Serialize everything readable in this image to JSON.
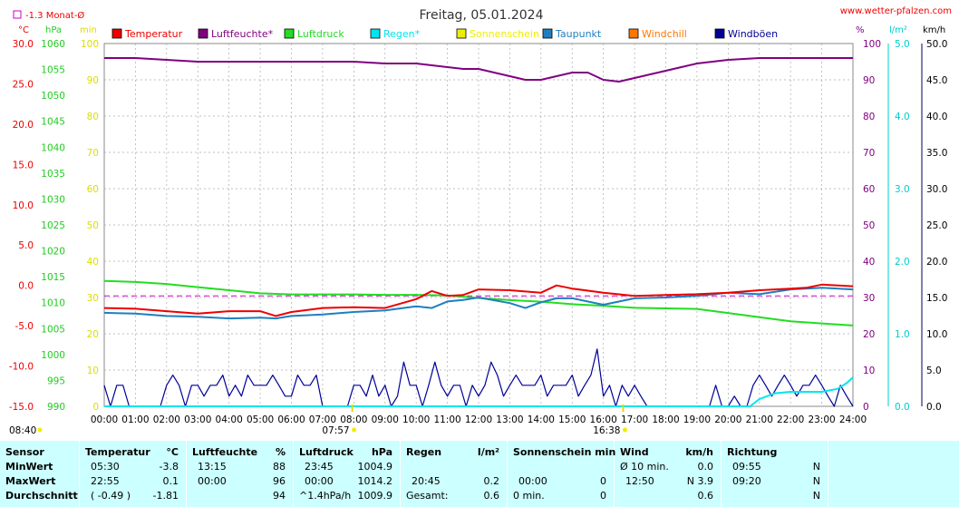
{
  "header": {
    "title": "Freitag, 05.01.2024",
    "site": "www.wetter-pfalzen.com",
    "month_avg_label": "-1.3 Monat-Ø"
  },
  "axis_units": {
    "temp": "°C",
    "pressure": "hPa",
    "minutes": "min",
    "humidity": "%",
    "rain": "l/m²",
    "wind": "km/h"
  },
  "legend": [
    {
      "label": "Temperatur",
      "color": "#ee0000"
    },
    {
      "label": "Luftfeuchte*",
      "color": "#800080"
    },
    {
      "label": "Luftdruck",
      "color": "#22dd22"
    },
    {
      "label": "Regen*",
      "color": "#00e5ee"
    },
    {
      "label": "Sonnenschein",
      "color": "#eeee00"
    },
    {
      "label": "Taupunkt",
      "color": "#1e7fc0"
    },
    {
      "label": "Windchill",
      "color": "#ff7700"
    },
    {
      "label": "Windböen",
      "color": "#000099"
    }
  ],
  "markers": {
    "sunrise_left": "08:40",
    "sunrise": "07:57",
    "sunset": "16:38"
  },
  "chart_data": {
    "type": "line",
    "title": "Freitag, 05.01.2024",
    "x_ticks": [
      "00:00",
      "01:00",
      "02:00",
      "03:00",
      "04:00",
      "05:00",
      "06:00",
      "07:00",
      "08:00",
      "09:00",
      "10:00",
      "11:00",
      "12:00",
      "13:00",
      "14:00",
      "15:00",
      "16:00",
      "17:00",
      "18:00",
      "19:00",
      "20:00",
      "21:00",
      "22:00",
      "23:00",
      "24:00"
    ],
    "axes": {
      "temp": {
        "unit": "°C",
        "range": [
          -15,
          30
        ],
        "ticks": [
          "30.0",
          "25.0",
          "20.0",
          "15.0",
          "10.0",
          "5.0",
          "0.0",
          "-5.0",
          "-10.0",
          "-15.0"
        ]
      },
      "pressure": {
        "unit": "hPa",
        "range": [
          990,
          1060
        ],
        "ticks": [
          "1060",
          "1055",
          "1050",
          "1045",
          "1040",
          "1035",
          "1030",
          "1025",
          "1020",
          "1015",
          "1010",
          "1005",
          "1000",
          "995",
          "990"
        ]
      },
      "minutes": {
        "unit": "min",
        "range": [
          0,
          100
        ],
        "ticks": [
          "100",
          "90",
          "80",
          "70",
          "60",
          "50",
          "40",
          "30",
          "20",
          "10",
          "0"
        ]
      },
      "humidity": {
        "unit": "%",
        "range": [
          0,
          100
        ],
        "ticks": [
          "100",
          "90",
          "80",
          "70",
          "60",
          "50",
          "40",
          "30",
          "20",
          "10",
          "0"
        ]
      },
      "rain": {
        "unit": "l/m²",
        "range": [
          0,
          5
        ],
        "ticks": [
          "5.0",
          "4.0",
          "3.0",
          "2.0",
          "1.0",
          "0.0"
        ]
      },
      "wind": {
        "unit": "km/h",
        "range": [
          0,
          50
        ],
        "ticks": [
          "50.0",
          "45.0",
          "40.0",
          "35.0",
          "30.0",
          "25.0",
          "20.0",
          "15.0",
          "10.0",
          "5.0",
          "0.0"
        ]
      }
    },
    "month_avg_temp": -1.3,
    "series": [
      {
        "name": "Luftfeuchte*",
        "axis": "humidity",
        "color": "#800080",
        "x": [
          0,
          1,
          2,
          3,
          4,
          5,
          6,
          7,
          8,
          9,
          10,
          11,
          11.5,
          12,
          12.5,
          13,
          13.5,
          14,
          14.5,
          15,
          15.5,
          16,
          16.5,
          17,
          17.5,
          18,
          18.5,
          19,
          20,
          21,
          22,
          23,
          24
        ],
        "y": [
          96,
          96,
          95.5,
          95,
          95,
          95,
          95,
          95,
          95,
          94.5,
          94.5,
          93.5,
          93,
          93,
          92,
          91,
          90,
          90,
          91,
          92,
          92,
          90,
          89.5,
          90.5,
          91.5,
          92.5,
          93.5,
          94.5,
          95.5,
          96,
          96,
          96,
          96
        ]
      },
      {
        "name": "Temperatur",
        "axis": "temp",
        "color": "#ee0000",
        "x": [
          0,
          1,
          2,
          3,
          4,
          5,
          5.5,
          6,
          7,
          8,
          9,
          10,
          10.5,
          11,
          11.5,
          12,
          13,
          14,
          14.5,
          15,
          16,
          17,
          18,
          19,
          20,
          21,
          22,
          22.5,
          23,
          24
        ],
        "y": [
          -2.8,
          -2.9,
          -3.2,
          -3.5,
          -3.2,
          -3.2,
          -3.8,
          -3.3,
          -2.8,
          -2.7,
          -2.8,
          -1.7,
          -0.7,
          -1.3,
          -1.2,
          -0.5,
          -0.6,
          -0.9,
          0.0,
          -0.4,
          -0.9,
          -1.3,
          -1.2,
          -1.1,
          -0.9,
          -0.6,
          -0.4,
          -0.3,
          0.1,
          -0.1
        ]
      },
      {
        "name": "Taupunkt",
        "axis": "temp",
        "color": "#1e7fc0",
        "x": [
          0,
          1,
          2,
          3,
          4,
          5,
          5.5,
          6,
          7,
          8,
          9,
          10,
          10.5,
          11,
          11.5,
          12,
          13,
          13.5,
          14,
          14.5,
          15,
          16,
          17,
          18,
          19,
          20,
          21,
          22,
          23,
          24
        ],
        "y": [
          -3.4,
          -3.5,
          -3.8,
          -3.9,
          -4.1,
          -4.0,
          -4.1,
          -3.8,
          -3.6,
          -3.3,
          -3.1,
          -2.6,
          -2.8,
          -2.0,
          -1.8,
          -1.5,
          -2.2,
          -2.8,
          -2.1,
          -1.6,
          -1.6,
          -2.4,
          -1.6,
          -1.5,
          -1.3,
          -0.9,
          -1.1,
          -0.5,
          -0.3,
          -0.5
        ]
      },
      {
        "name": "Luftdruck",
        "axis": "pressure",
        "color": "#22dd22",
        "x": [
          0,
          1,
          2,
          3,
          4,
          5,
          6,
          7,
          8,
          9,
          10,
          11,
          12,
          13,
          14,
          15,
          16,
          17,
          18,
          19,
          20,
          21,
          22,
          23,
          24
        ],
        "y": [
          1014.2,
          1014.0,
          1013.6,
          1013.0,
          1012.4,
          1011.8,
          1011.6,
          1011.6,
          1011.6,
          1011.5,
          1011.5,
          1011.4,
          1010.9,
          1010.5,
          1010.2,
          1009.7,
          1009.4,
          1009.0,
          1008.9,
          1008.8,
          1008.0,
          1007.2,
          1006.4,
          1006.0,
          1005.6
        ]
      },
      {
        "name": "Windböen",
        "axis": "wind",
        "color": "#000099",
        "x": [
          0,
          0.2,
          0.4,
          0.6,
          0.8,
          1.0,
          1.2,
          1.4,
          1.6,
          1.8,
          2.0,
          2.2,
          2.4,
          2.6,
          2.8,
          3.0,
          3.2,
          3.4,
          3.6,
          3.8,
          4.0,
          4.2,
          4.4,
          4.6,
          4.8,
          5.0,
          5.2,
          5.4,
          5.6,
          5.8,
          6.0,
          6.2,
          6.4,
          6.6,
          6.8,
          7.0,
          7.2,
          7.4,
          7.6,
          7.8,
          8.0,
          8.2,
          8.4,
          8.6,
          8.8,
          9.0,
          9.2,
          9.4,
          9.6,
          9.8,
          10.0,
          10.2,
          10.4,
          10.6,
          10.8,
          11.0,
          11.2,
          11.4,
          11.6,
          11.8,
          12.0,
          12.2,
          12.4,
          12.6,
          12.8,
          13.0,
          13.2,
          13.4,
          13.6,
          13.8,
          14.0,
          14.2,
          14.4,
          14.6,
          14.8,
          15.0,
          15.2,
          15.4,
          15.6,
          15.8,
          16.0,
          16.2,
          16.4,
          16.6,
          16.8,
          17.0,
          17.2,
          17.4,
          17.6,
          17.8,
          18.0,
          18.2,
          18.4,
          18.6,
          18.8,
          19.0,
          19.2,
          19.4,
          19.6,
          19.8,
          20.0,
          20.2,
          20.4,
          20.6,
          20.8,
          21.0,
          21.2,
          21.4,
          21.6,
          21.8,
          22.0,
          22.2,
          22.4,
          22.6,
          22.8,
          23.0,
          23.2,
          23.4,
          23.6,
          23.8,
          24.0
        ],
        "y": [
          2.9,
          0,
          2.9,
          2.9,
          0,
          0,
          0,
          0,
          0,
          0,
          2.9,
          4.3,
          2.9,
          0,
          2.9,
          2.9,
          1.4,
          2.9,
          2.9,
          4.3,
          1.4,
          2.9,
          1.4,
          4.3,
          2.9,
          2.9,
          2.9,
          4.3,
          2.9,
          1.4,
          1.4,
          4.3,
          2.9,
          2.9,
          4.3,
          0,
          0,
          0,
          0,
          0,
          2.9,
          2.9,
          1.4,
          4.3,
          1.4,
          2.9,
          0,
          1.4,
          6.1,
          2.9,
          2.9,
          0,
          2.9,
          6.1,
          2.9,
          1.4,
          2.9,
          2.9,
          0,
          2.9,
          1.4,
          2.9,
          6.1,
          4.3,
          1.4,
          2.9,
          4.3,
          2.9,
          2.9,
          2.9,
          4.3,
          1.4,
          2.9,
          2.9,
          2.9,
          4.3,
          1.4,
          2.9,
          4.3,
          7.9,
          1.4,
          2.9,
          0,
          2.9,
          1.4,
          2.9,
          1.4,
          0,
          0,
          0,
          0,
          0,
          0,
          0,
          0,
          0,
          0,
          0,
          2.9,
          0,
          0,
          1.4,
          0,
          0,
          2.9,
          4.3,
          2.9,
          1.4,
          2.9,
          4.3,
          2.9,
          1.4,
          2.9,
          2.9,
          4.3,
          2.9,
          1.4,
          0,
          2.9,
          1.4,
          0
        ]
      },
      {
        "name": "Regen*",
        "axis": "rain",
        "color": "#00e5ee",
        "x": [
          0,
          20.7,
          21.0,
          21.5,
          22.0,
          23.0,
          23.5,
          23.8,
          24.0
        ],
        "y": [
          0,
          0,
          0.1,
          0.18,
          0.2,
          0.2,
          0.24,
          0.32,
          0.4
        ]
      }
    ]
  },
  "stats": {
    "sensor": {
      "header": "Sensor",
      "rows": [
        "MinWert",
        "MaxWert",
        "Durchschnitt"
      ]
    },
    "temperatur": {
      "header": "Temperatur",
      "unit": "°C",
      "rows": [
        [
          "05:30",
          "-3.8"
        ],
        [
          "22:55",
          "0.1"
        ],
        [
          "( -0.49 )",
          "-1.81"
        ]
      ]
    },
    "luftfeuchte": {
      "header": "Luftfeuchte",
      "unit": "%",
      "rows": [
        [
          "13:15",
          "88"
        ],
        [
          "00:00",
          "96"
        ],
        [
          "",
          "94"
        ]
      ]
    },
    "luftdruck": {
      "header": "Luftdruck",
      "unit": "hPa",
      "rows": [
        [
          "23:45",
          "1004.9"
        ],
        [
          "00:00",
          "1014.2"
        ],
        [
          "^1.4hPa/h",
          "1009.9"
        ]
      ]
    },
    "regen": {
      "header": "Regen",
      "unit": "l/m²",
      "rows": [
        [
          "",
          ""
        ],
        [
          "20:45",
          "0.2"
        ],
        [
          "Gesamt:",
          "0.6"
        ]
      ]
    },
    "sonnenschein": {
      "header": "Sonnenschein min",
      "unit": "",
      "rows": [
        [
          "",
          ""
        ],
        [
          "00:00",
          "0"
        ],
        [
          "0 min.",
          "0"
        ]
      ]
    },
    "wind": {
      "header": "Wind",
      "unit": "km/h",
      "rows": [
        [
          "Ø 10 min.",
          "0.0"
        ],
        [
          "12:50",
          "N 3.9"
        ],
        [
          "",
          "0.6"
        ]
      ]
    },
    "richtung": {
      "header": "Richtung",
      "unit": "",
      "rows": [
        [
          "09:55",
          "N"
        ],
        [
          "09:20",
          "N"
        ],
        [
          "",
          "N"
        ]
      ]
    }
  }
}
